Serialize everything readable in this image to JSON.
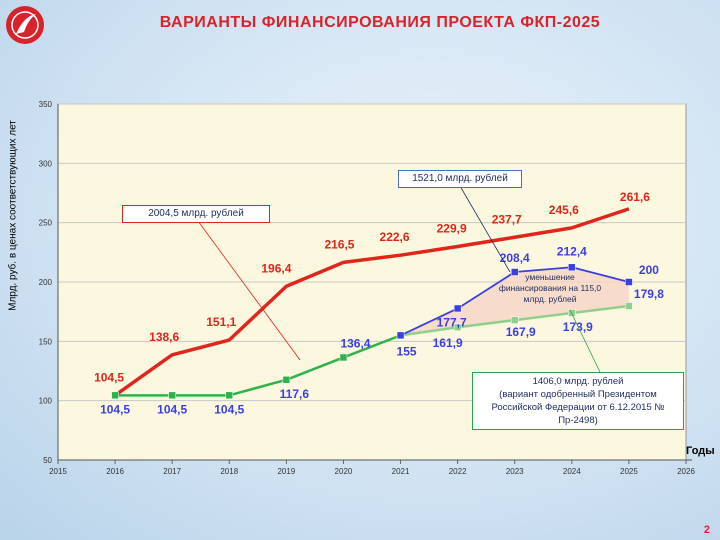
{
  "title": "ВАРИАНТЫ ФИНАНСИРОВАНИЯ ПРОЕКТА ФКП-2025",
  "page_number": "2",
  "colors": {
    "red": "#e0251b",
    "blue": "#3a3fe0",
    "green": "#2fb24a",
    "lightgreen": "#8fd08f",
    "fill": "#f6d6c8"
  },
  "callouts": {
    "top": "1521,0 млрд. рублей",
    "red": "2004,5 млрд. рублей",
    "reduction": "уменьшение финансирования на 115,0 млрд. рублей",
    "low_line1": "1406,0 млрд. рублей",
    "low_line2": "(вариант одобренный Президентом Российской Федерации от 6.12.2015 № Пр-2498)"
  },
  "chart_data": {
    "type": "line",
    "ylabel": "Млрд. руб. в ценах соответствующих лет",
    "xlabel": "Годы",
    "xlim": [
      2015,
      2026
    ],
    "ylim": [
      50,
      350
    ],
    "xticks": [
      "2015",
      "2016",
      "2017",
      "2018",
      "2019",
      "2020",
      "2021",
      "2022",
      "2023",
      "2024",
      "2025",
      "2026"
    ],
    "yticks": [
      "50",
      "100",
      "150",
      "200",
      "250",
      "300",
      "350"
    ],
    "series": [
      {
        "key": "red",
        "x": [
          2016,
          2017,
          2018,
          2019,
          2020,
          2021,
          2022,
          2023,
          2024,
          2025
        ],
        "values": [
          104.5,
          138.6,
          151.1,
          196.4,
          216.5,
          222.6,
          229.9,
          237.7,
          245.6,
          261.6
        ],
        "labels": [
          "104,5",
          "138,6",
          "151,1",
          "196,4",
          "216,5",
          "222,6",
          "229,9",
          "237,7",
          "245,6",
          "261,6"
        ]
      },
      {
        "key": "blue",
        "x": [
          2021,
          2022,
          2023,
          2024,
          2025
        ],
        "values": [
          155,
          177.7,
          208.4,
          212.4,
          200
        ],
        "labels": [
          "",
          "177,7",
          "208,4",
          "212,4",
          "200"
        ]
      },
      {
        "key": "green",
        "x": [
          2016,
          2017,
          2018,
          2019,
          2020,
          2021
        ],
        "values": [
          104.5,
          104.5,
          104.5,
          117.6,
          136.4,
          155
        ],
        "labels": [
          "104,5",
          "104,5",
          "104,5",
          "117,6",
          "136,4",
          "155"
        ]
      },
      {
        "key": "lightgreen",
        "x": [
          2021,
          2022,
          2023,
          2024,
          2025
        ],
        "values": [
          155,
          161.9,
          167.9,
          173.9,
          179.8
        ],
        "labels": [
          "",
          "161,9",
          "167,9",
          "173,9",
          "179,8"
        ]
      }
    ]
  }
}
